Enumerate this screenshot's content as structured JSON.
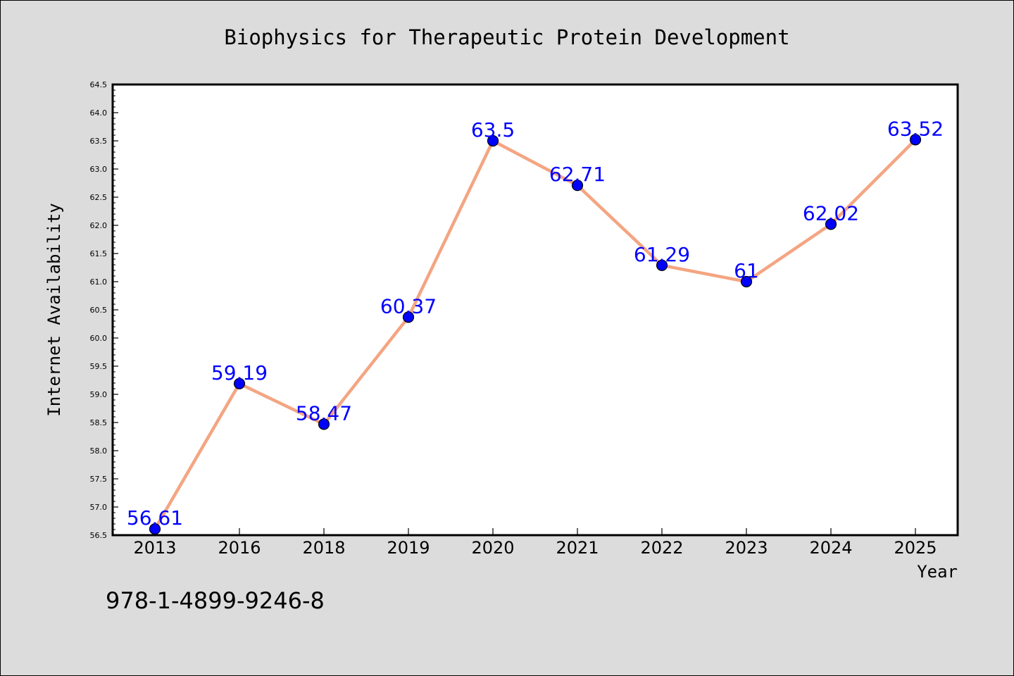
{
  "chart_data": {
    "type": "line",
    "title": "Biophysics for Therapeutic Protein Development",
    "xlabel": "Year",
    "ylabel": "Internet Availability",
    "categories": [
      "2013",
      "2016",
      "2018",
      "2019",
      "2020",
      "2021",
      "2022",
      "2023",
      "2024",
      "2025"
    ],
    "series": [
      {
        "values": [
          56.61,
          59.19,
          58.47,
          60.37,
          63.5,
          62.71,
          61.29,
          61,
          62.02,
          63.52
        ],
        "labels": [
          "56.61",
          "59.19",
          "58.47",
          "60.37",
          "63.5",
          "62.71",
          "61.29",
          "61",
          "62.02",
          "63.52"
        ]
      }
    ],
    "ylim": [
      56.5,
      64.5
    ],
    "ytick_labels": [
      "56.5",
      "57.0",
      "57.5",
      "58.0",
      "58.5",
      "59.0",
      "59.5",
      "60.0",
      "60.5",
      "61.0",
      "61.5",
      "62.0",
      "62.5",
      "63.0",
      "63.5",
      "64.0",
      "64.5"
    ],
    "grid": false,
    "legend": "none",
    "colors": {
      "figure_bg": "#dcdcdc",
      "plot_bg": "#ffffff",
      "line": "#f4a582",
      "marker": "#0000ff",
      "data_label": "#0000ff",
      "text": "#000000"
    }
  },
  "footer_text": "978-1-4899-9246-8"
}
